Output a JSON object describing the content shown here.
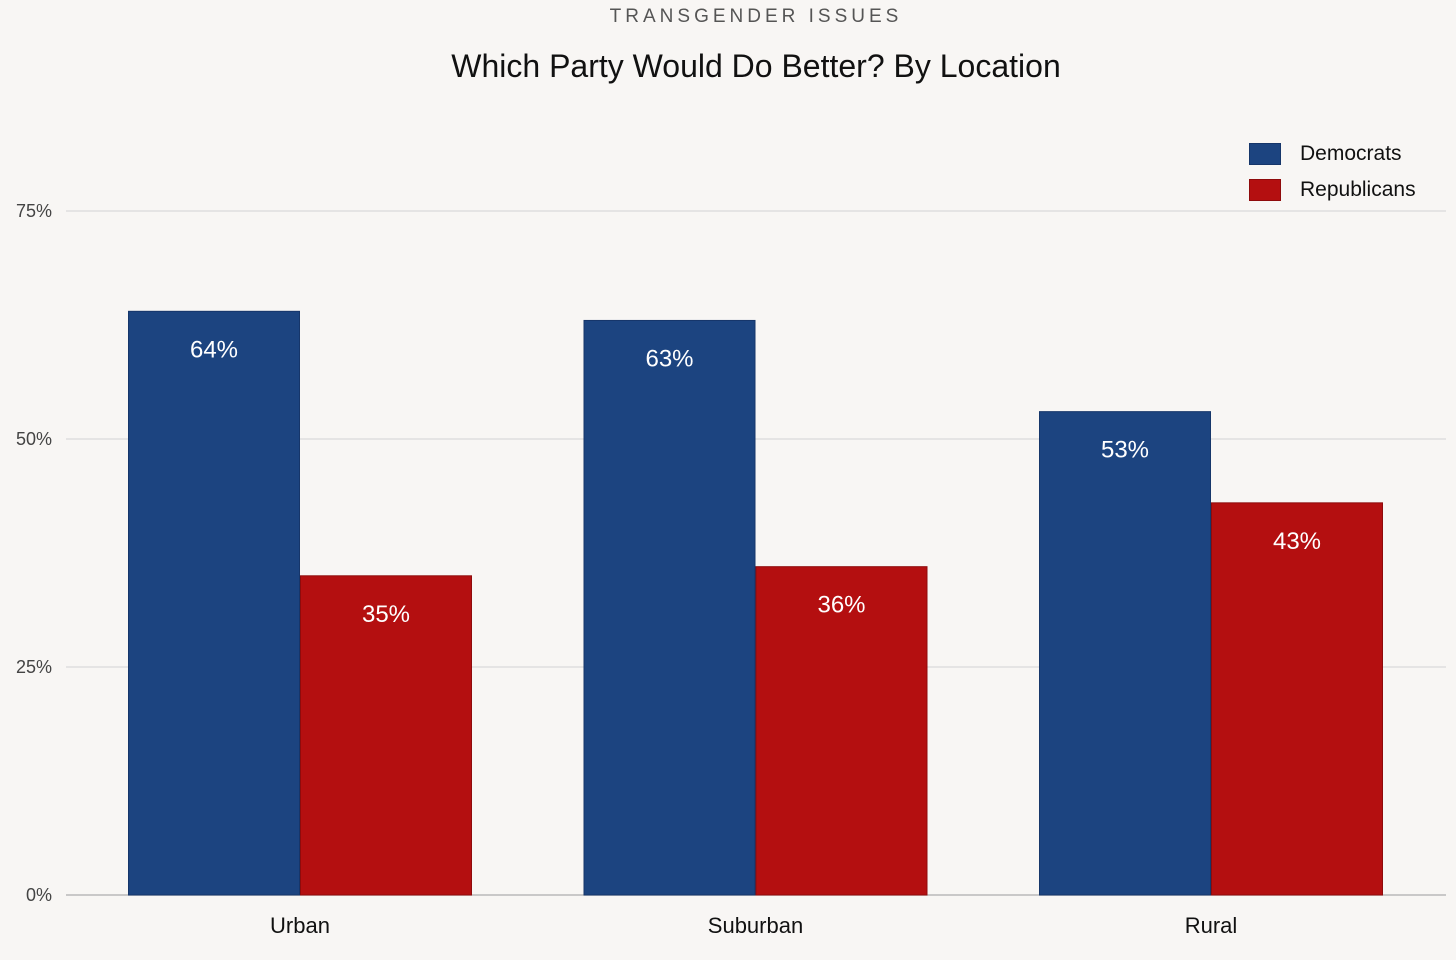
{
  "kicker": "TRANSGENDER ISSUES",
  "chart_data": {
    "type": "bar",
    "title": "Which Party Would Do Better? By Location",
    "categories": [
      "Urban",
      "Suburban",
      "Rural"
    ],
    "series": [
      {
        "name": "Democrats",
        "values": [
          64,
          63,
          53
        ],
        "labels": [
          "64%",
          "63%",
          "53%"
        ],
        "color": "#1c4480",
        "stroke": "#16366a"
      },
      {
        "name": "Republicans",
        "values": [
          35,
          36,
          43
        ],
        "labels": [
          "35%",
          "36%",
          "43%"
        ],
        "color": "#b40f10",
        "stroke": "#8f0b0c"
      }
    ],
    "y_ticks": [
      0,
      25,
      50,
      75
    ],
    "y_tick_labels": [
      "0%",
      "25%",
      "50%",
      "75%"
    ],
    "ylim": [
      0,
      75
    ],
    "grid": true,
    "legend_position": "top-right",
    "xlabel": "",
    "ylabel": ""
  }
}
